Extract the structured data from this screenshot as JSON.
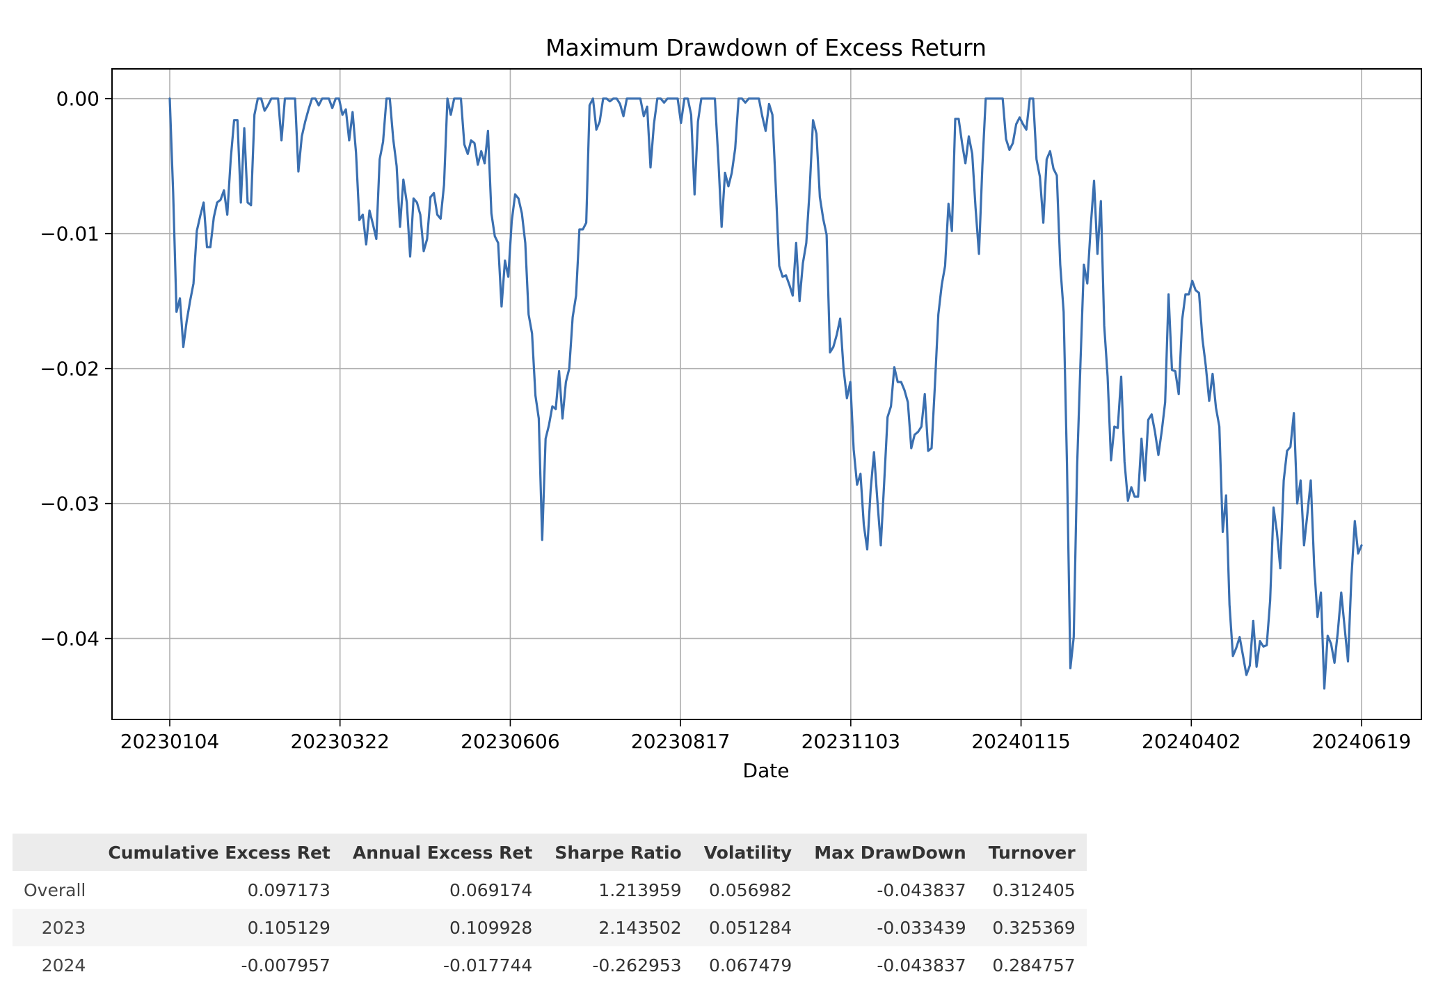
{
  "chart_data": {
    "type": "line",
    "title": "Maximum Drawdown of Excess Return",
    "xlabel": "Date",
    "ylabel": "",
    "x_tick_labels": [
      "20230104",
      "20230322",
      "20230606",
      "20230817",
      "20231103",
      "20240115",
      "20240402",
      "20240619"
    ],
    "y_ticks": [
      0.0,
      -0.01,
      -0.02,
      -0.03,
      -0.04
    ],
    "y_tick_labels": [
      "0.00",
      "−0.01",
      "−0.02",
      "−0.03",
      "−0.04"
    ],
    "ylim": [
      -0.046,
      0.0022
    ],
    "grid": true,
    "line_color": "#3a6fb0",
    "series": [
      {
        "values": [
          0.0,
          -0.007,
          -0.0158,
          -0.0148,
          -0.0184,
          -0.0165,
          -0.015,
          -0.0137,
          -0.0098,
          -0.0087,
          -0.0077,
          -0.011,
          -0.011,
          -0.0088,
          -0.0077,
          -0.0075,
          -0.0068,
          -0.0086,
          -0.0045,
          -0.0016,
          -0.0016,
          -0.0077,
          -0.0022,
          -0.0077,
          -0.0079,
          -0.0012,
          0.0,
          0.0,
          -0.0009,
          -0.0005,
          0.0,
          0.0,
          0.0,
          -0.0031,
          0.0,
          0.0,
          0.0,
          0.0,
          -0.0054,
          -0.0028,
          -0.0017,
          -0.0008,
          0.0,
          0.0,
          -0.0005,
          0.0,
          0.0,
          0.0,
          -0.0007,
          0.0,
          0.0,
          -0.0012,
          -0.0008,
          -0.0031,
          -0.001,
          -0.004,
          -0.009,
          -0.0086,
          -0.0108,
          -0.0083,
          -0.0093,
          -0.0104,
          -0.0045,
          -0.0032,
          0.0,
          0.0,
          -0.003,
          -0.005,
          -0.0095,
          -0.006,
          -0.0077,
          -0.0117,
          -0.0074,
          -0.0077,
          -0.0086,
          -0.0113,
          -0.0104,
          -0.0073,
          -0.007,
          -0.0086,
          -0.0089,
          -0.0064,
          0.0,
          -0.0012,
          0.0,
          0.0,
          0.0,
          -0.0034,
          -0.0041,
          -0.0031,
          -0.0033,
          -0.0049,
          -0.0039,
          -0.0048,
          -0.0024,
          -0.0085,
          -0.0102,
          -0.0107,
          -0.0154,
          -0.012,
          -0.0132,
          -0.0091,
          -0.0071,
          -0.0074,
          -0.0085,
          -0.0107,
          -0.016,
          -0.0174,
          -0.022,
          -0.0237,
          -0.0327,
          -0.0252,
          -0.0242,
          -0.0228,
          -0.023,
          -0.0202,
          -0.0237,
          -0.021,
          -0.02,
          -0.0162,
          -0.0146,
          -0.0097,
          -0.0097,
          -0.0092,
          -0.0005,
          0.0,
          -0.0023,
          -0.0017,
          0.0,
          0.0,
          -0.0002,
          0.0,
          0.0,
          -0.0004,
          -0.0013,
          0.0,
          0.0,
          0.0,
          0.0,
          0.0,
          -0.0013,
          -0.0006,
          -0.0051,
          -0.0019,
          0.0,
          0.0,
          -0.0003,
          0.0,
          0.0,
          0.0,
          0.0,
          -0.0018,
          0.0,
          0.0,
          -0.0012,
          -0.0071,
          -0.0017,
          0.0,
          0.0,
          0.0,
          0.0,
          0.0,
          -0.0044,
          -0.0095,
          -0.0055,
          -0.0065,
          -0.0055,
          -0.0037,
          0.0,
          0.0,
          -0.0003,
          0.0,
          0.0,
          0.0,
          0.0,
          -0.0013,
          -0.0024,
          -0.0004,
          -0.0012,
          -0.0066,
          -0.0124,
          -0.0132,
          -0.0131,
          -0.0138,
          -0.0146,
          -0.0107,
          -0.015,
          -0.0122,
          -0.0107,
          -0.0067,
          -0.0016,
          -0.0026,
          -0.0073,
          -0.0089,
          -0.0101,
          -0.0188,
          -0.0184,
          -0.0175,
          -0.0163,
          -0.02,
          -0.0222,
          -0.021,
          -0.026,
          -0.0286,
          -0.0278,
          -0.0316,
          -0.0334,
          -0.029,
          -0.0262,
          -0.0298,
          -0.0331,
          -0.0285,
          -0.0236,
          -0.0228,
          -0.0199,
          -0.021,
          -0.021,
          -0.0216,
          -0.0225,
          -0.0259,
          -0.0249,
          -0.0247,
          -0.0243,
          -0.0219,
          -0.0261,
          -0.0259,
          -0.0212,
          -0.016,
          -0.0138,
          -0.0124,
          -0.0078,
          -0.0098,
          -0.0015,
          -0.0015,
          -0.0033,
          -0.0048,
          -0.0028,
          -0.0041,
          -0.0081,
          -0.0115,
          -0.005,
          0.0,
          0.0,
          0.0,
          0.0,
          0.0,
          0.0,
          -0.003,
          -0.0038,
          -0.0033,
          -0.0019,
          -0.0014,
          -0.0019,
          -0.0023,
          0.0,
          0.0,
          -0.0045,
          -0.0058,
          -0.0092,
          -0.0045,
          -0.0039,
          -0.0052,
          -0.0057,
          -0.0123,
          -0.0158,
          -0.0271,
          -0.0422,
          -0.0399,
          -0.0272,
          -0.0194,
          -0.0123,
          -0.0137,
          -0.0095,
          -0.0061,
          -0.0115,
          -0.0076,
          -0.0168,
          -0.0206,
          -0.0268,
          -0.0243,
          -0.0244,
          -0.0206,
          -0.0269,
          -0.0298,
          -0.0288,
          -0.0295,
          -0.0295,
          -0.0252,
          -0.0283,
          -0.0238,
          -0.0234,
          -0.0247,
          -0.0264,
          -0.0246,
          -0.0225,
          -0.0145,
          -0.0201,
          -0.0202,
          -0.0219,
          -0.0164,
          -0.0145,
          -0.0145,
          -0.0135,
          -0.0142,
          -0.0144,
          -0.0178,
          -0.0198,
          -0.0224,
          -0.0204,
          -0.0229,
          -0.0243,
          -0.0321,
          -0.0294,
          -0.0375,
          -0.0413,
          -0.0407,
          -0.0399,
          -0.0413,
          -0.0427,
          -0.042,
          -0.0387,
          -0.0421,
          -0.0402,
          -0.0406,
          -0.0405,
          -0.0372,
          -0.0303,
          -0.0321,
          -0.0348,
          -0.0283,
          -0.0261,
          -0.0258,
          -0.0233,
          -0.03,
          -0.0283,
          -0.0331,
          -0.0308,
          -0.0283,
          -0.0346,
          -0.0384,
          -0.0366,
          -0.0437,
          -0.0398,
          -0.0404,
          -0.0418,
          -0.0395,
          -0.0366,
          -0.0392,
          -0.0417,
          -0.0355,
          -0.0313,
          -0.0337,
          -0.0331
        ]
      }
    ]
  },
  "table": {
    "columns": [
      "",
      "Cumulative Excess Ret",
      "Annual Excess Ret",
      "Sharpe Ratio",
      "Volatility",
      "Max DrawDown",
      "Turnover"
    ],
    "rows": [
      [
        "Overall",
        "0.097173",
        "0.069174",
        "1.213959",
        "0.056982",
        "-0.043837",
        "0.312405"
      ],
      [
        "2023",
        "0.105129",
        "0.109928",
        "2.143502",
        "0.051284",
        "-0.033439",
        "0.325369"
      ],
      [
        "2024",
        "-0.007957",
        "-0.017744",
        "-0.262953",
        "0.067479",
        "-0.043837",
        "0.284757"
      ]
    ]
  }
}
